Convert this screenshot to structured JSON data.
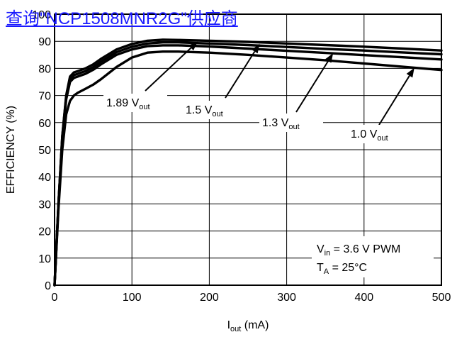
{
  "overlay_link": "查询\"NCP1508MNR2G\"供应商",
  "chart_data": {
    "type": "line",
    "xlabel_main": "I",
    "xlabel_sub": "out",
    "xlabel_unit": " (mA)",
    "ylabel": "EFFICIENCY (%)",
    "xlim": [
      0,
      500
    ],
    "ylim": [
      0,
      100
    ],
    "xticks": [
      0,
      100,
      200,
      300,
      400,
      500
    ],
    "yticks": [
      0,
      10,
      20,
      30,
      40,
      50,
      60,
      70,
      80,
      90,
      100
    ],
    "grid": true,
    "series": [
      {
        "name": "1.89 V",
        "name_sub": "out",
        "x": [
          0,
          5,
          10,
          15,
          20,
          25,
          30,
          40,
          50,
          60,
          80,
          100,
          120,
          140,
          160,
          200,
          250,
          300,
          350,
          400,
          450,
          500
        ],
        "y": [
          0,
          30,
          55,
          70,
          77,
          78.5,
          79,
          80,
          81.5,
          83.5,
          87,
          89,
          90.2,
          90.6,
          90.5,
          90.2,
          89.8,
          89.2,
          88.6,
          88,
          87.3,
          86.6
        ]
      },
      {
        "name": "1.5 V",
        "name_sub": "out",
        "x": [
          0,
          5,
          10,
          15,
          20,
          25,
          30,
          40,
          50,
          60,
          80,
          100,
          120,
          140,
          160,
          200,
          250,
          300,
          350,
          400,
          450,
          500
        ],
        "y": [
          0,
          30,
          55,
          69.5,
          76,
          77.5,
          78,
          79,
          80.5,
          82.5,
          86,
          88,
          89.2,
          89.6,
          89.6,
          89.2,
          88.6,
          87.9,
          87.2,
          86.6,
          85.9,
          85.2
        ]
      },
      {
        "name": "1.3 V",
        "name_sub": "out",
        "x": [
          0,
          5,
          10,
          15,
          20,
          25,
          30,
          40,
          50,
          60,
          80,
          100,
          120,
          140,
          160,
          200,
          250,
          300,
          350,
          400,
          450,
          500
        ],
        "y": [
          0,
          30,
          54,
          68.5,
          75,
          76.5,
          77,
          78,
          79.5,
          81.5,
          85,
          87,
          88.2,
          88.5,
          88.5,
          88.1,
          87.3,
          86.5,
          85.7,
          84.9,
          84.1,
          83.3
        ]
      },
      {
        "name": "1.0 V",
        "name_sub": "out",
        "x": [
          0,
          5,
          10,
          15,
          20,
          25,
          30,
          40,
          50,
          60,
          80,
          100,
          120,
          140,
          160,
          200,
          250,
          300,
          350,
          400,
          450,
          500
        ],
        "y": [
          0,
          28,
          50,
          63,
          68,
          70,
          71,
          72.5,
          74,
          76,
          80.5,
          84,
          85.8,
          86.2,
          86.2,
          85.8,
          85,
          84,
          83,
          81.8,
          80.6,
          79.4
        ]
      }
    ],
    "annotations": [
      {
        "series": 0,
        "label": "1.89 V",
        "label_sub": "out",
        "arrow_to": [
          185,
          89.9
        ]
      },
      {
        "series": 1,
        "label": "1.5 V",
        "label_sub": "out",
        "arrow_to": [
          265,
          89.1
        ]
      },
      {
        "series": 2,
        "label": "1.3 V",
        "label_sub": "out",
        "arrow_to": [
          360,
          85.6
        ]
      },
      {
        "series": 3,
        "label": "1.0 V",
        "label_sub": "out",
        "arrow_to": [
          465,
          80.2
        ]
      }
    ],
    "conditions": {
      "vin_main": "V",
      "vin_sub": "in",
      "vin_rest": " = 3.6 V PWM",
      "ta_main": "T",
      "ta_sub": "A",
      "ta_rest": " = 25°C"
    }
  }
}
